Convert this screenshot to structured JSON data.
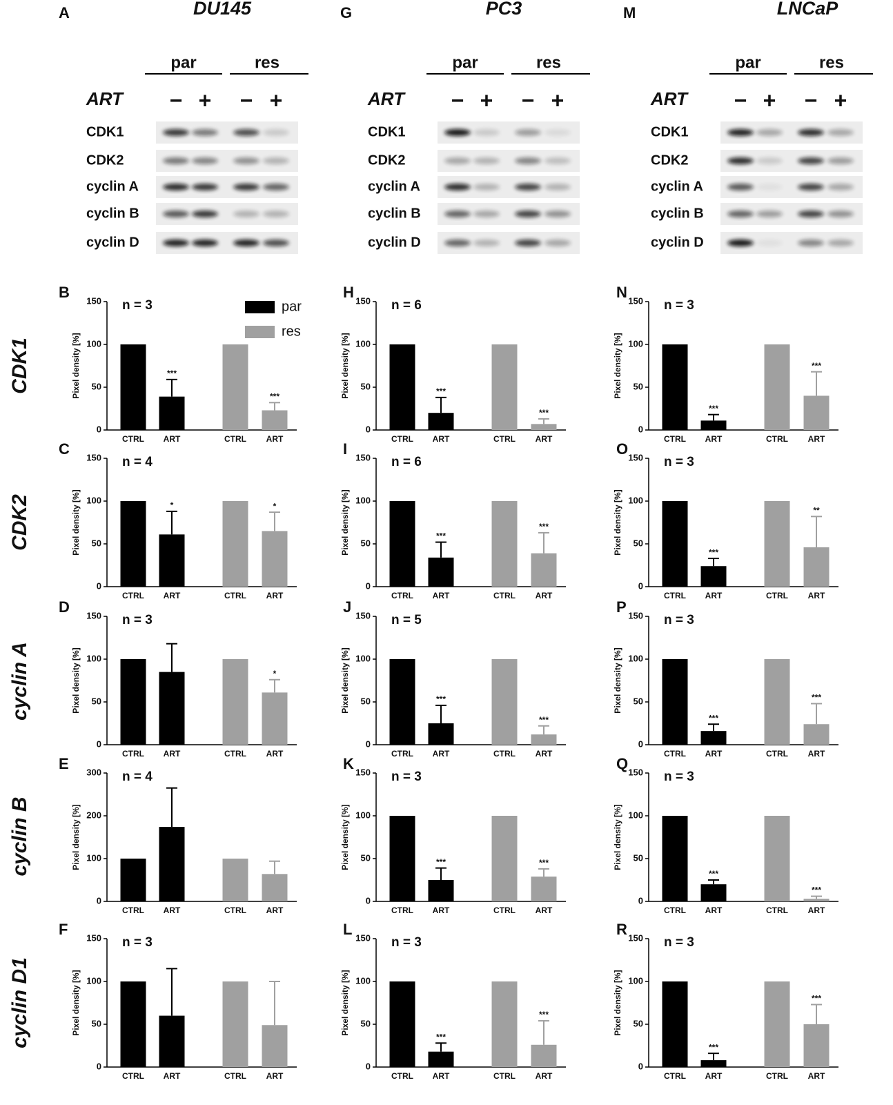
{
  "row_labels": [
    "CDK1",
    "CDK2",
    "cyclin A",
    "cyclin B",
    "cyclin D1"
  ],
  "blots": [
    {
      "panel": "A",
      "title": "DU145",
      "groups": [
        "par",
        "res"
      ],
      "treatment": "ART",
      "signs": [
        "−",
        "+",
        "−",
        "+"
      ],
      "proteins": [
        "CDK1",
        "CDK2",
        "cyclin A",
        "cyclin B",
        "cyclin D"
      ]
    },
    {
      "panel": "G",
      "title": "PC3",
      "groups": [
        "par",
        "res"
      ],
      "treatment": "ART",
      "signs": [
        "−",
        "+",
        "−",
        "+"
      ],
      "proteins": [
        "CDK1",
        "CDK2",
        "cyclin A",
        "cyclin B",
        "cyclin D"
      ]
    },
    {
      "panel": "M",
      "title": "LNCaP",
      "groups": [
        "par",
        "res"
      ],
      "treatment": "ART",
      "signs": [
        "−",
        "+",
        "−",
        "+"
      ],
      "proteins": [
        "CDK1",
        "CDK2",
        "cyclin A",
        "cyclin B",
        "cyclin D"
      ]
    }
  ],
  "chart_data": [
    {
      "type": "bar",
      "panel": "B",
      "n_label": "n = 3",
      "ylabel": "Pixel density [%]",
      "categories": [
        "CTRL",
        "ART",
        "CTRL",
        "ART"
      ],
      "ylim": [
        0,
        150
      ],
      "yticks": [
        0,
        50,
        100,
        150
      ],
      "series": [
        {
          "name": "par",
          "color": "#000000",
          "values": [
            100,
            39,
            null,
            null
          ],
          "errors": [
            null,
            20,
            null,
            null
          ],
          "annotations": [
            null,
            "***",
            null,
            null
          ]
        },
        {
          "name": "res",
          "color": "#a0a0a0",
          "values": [
            null,
            null,
            100,
            23
          ],
          "errors": [
            null,
            null,
            null,
            9
          ],
          "annotations": [
            null,
            null,
            null,
            "***"
          ]
        }
      ]
    },
    {
      "type": "bar",
      "panel": "C",
      "n_label": "n = 4",
      "ylabel": "Pixel density [%]",
      "categories": [
        "CTRL",
        "ART",
        "CTRL",
        "ART"
      ],
      "ylim": [
        0,
        150
      ],
      "yticks": [
        0,
        50,
        100,
        150
      ],
      "series": [
        {
          "color": "#000000",
          "values": [
            100,
            61,
            null,
            null
          ],
          "errors": [
            null,
            27,
            null,
            null
          ],
          "annotations": [
            null,
            "*",
            null,
            null
          ]
        },
        {
          "color": "#a0a0a0",
          "values": [
            null,
            null,
            100,
            65
          ],
          "errors": [
            null,
            null,
            null,
            22
          ],
          "annotations": [
            null,
            null,
            null,
            "*"
          ]
        }
      ]
    },
    {
      "type": "bar",
      "panel": "D",
      "n_label": "n = 3",
      "ylabel": "Pixel density [%]",
      "categories": [
        "CTRL",
        "ART",
        "CTRL",
        "ART"
      ],
      "ylim": [
        0,
        150
      ],
      "yticks": [
        0,
        50,
        100,
        150
      ],
      "series": [
        {
          "color": "#000000",
          "values": [
            100,
            85,
            null,
            null
          ],
          "errors": [
            null,
            33,
            null,
            null
          ],
          "annotations": [
            null,
            null,
            null,
            null
          ]
        },
        {
          "color": "#a0a0a0",
          "values": [
            null,
            null,
            100,
            61
          ],
          "errors": [
            null,
            null,
            null,
            15
          ],
          "annotations": [
            null,
            null,
            null,
            "*"
          ]
        }
      ]
    },
    {
      "type": "bar",
      "panel": "E",
      "n_label": "n = 4",
      "ylabel": "Pixel density [%]",
      "categories": [
        "CTRL",
        "ART",
        "CTRL",
        "ART"
      ],
      "ylim": [
        0,
        300
      ],
      "yticks": [
        0,
        100,
        200,
        300
      ],
      "series": [
        {
          "color": "#000000",
          "values": [
            100,
            174,
            null,
            null
          ],
          "errors": [
            null,
            91,
            null,
            null
          ],
          "annotations": [
            null,
            null,
            null,
            null
          ]
        },
        {
          "color": "#a0a0a0",
          "values": [
            null,
            null,
            100,
            64
          ],
          "errors": [
            null,
            null,
            null,
            30
          ],
          "annotations": [
            null,
            null,
            null,
            null
          ]
        }
      ]
    },
    {
      "type": "bar",
      "panel": "F",
      "n_label": "n = 3",
      "ylabel": "Pixel density [%]",
      "categories": [
        "CTRL",
        "ART",
        "CTRL",
        "ART"
      ],
      "ylim": [
        0,
        150
      ],
      "yticks": [
        0,
        50,
        100,
        150
      ],
      "series": [
        {
          "color": "#000000",
          "values": [
            100,
            60,
            null,
            null
          ],
          "errors": [
            null,
            55,
            null,
            null
          ],
          "annotations": [
            null,
            null,
            null,
            null
          ]
        },
        {
          "color": "#a0a0a0",
          "values": [
            null,
            null,
            100,
            49
          ],
          "errors": [
            null,
            null,
            null,
            51
          ],
          "annotations": [
            null,
            null,
            null,
            null
          ]
        }
      ]
    },
    {
      "type": "bar",
      "panel": "H",
      "n_label": "n = 6",
      "ylabel": "Pixel density [%]",
      "categories": [
        "CTRL",
        "ART",
        "CTRL",
        "ART"
      ],
      "ylim": [
        0,
        150
      ],
      "yticks": [
        0,
        50,
        100,
        150
      ],
      "series": [
        {
          "color": "#000000",
          "values": [
            100,
            20,
            null,
            null
          ],
          "errors": [
            null,
            18,
            null,
            null
          ],
          "annotations": [
            null,
            "***",
            null,
            null
          ]
        },
        {
          "color": "#a0a0a0",
          "values": [
            null,
            null,
            100,
            7
          ],
          "errors": [
            null,
            null,
            null,
            6
          ],
          "annotations": [
            null,
            null,
            null,
            "***"
          ]
        }
      ]
    },
    {
      "type": "bar",
      "panel": "I",
      "n_label": "n = 6",
      "ylabel": "Pixel density [%]",
      "categories": [
        "CTRL",
        "ART",
        "CTRL",
        "ART"
      ],
      "ylim": [
        0,
        150
      ],
      "yticks": [
        0,
        50,
        100,
        150
      ],
      "series": [
        {
          "color": "#000000",
          "values": [
            100,
            34,
            null,
            null
          ],
          "errors": [
            null,
            18,
            null,
            null
          ],
          "annotations": [
            null,
            "***",
            null,
            null
          ]
        },
        {
          "color": "#a0a0a0",
          "values": [
            null,
            null,
            100,
            39
          ],
          "errors": [
            null,
            null,
            null,
            24
          ],
          "annotations": [
            null,
            null,
            null,
            "***"
          ]
        }
      ]
    },
    {
      "type": "bar",
      "panel": "J",
      "n_label": "n = 5",
      "ylabel": "Pixel density [%]",
      "categories": [
        "CTRL",
        "ART",
        "CTRL",
        "ART"
      ],
      "ylim": [
        0,
        150
      ],
      "yticks": [
        0,
        50,
        100,
        150
      ],
      "series": [
        {
          "color": "#000000",
          "values": [
            100,
            25,
            null,
            null
          ],
          "errors": [
            null,
            21,
            null,
            null
          ],
          "annotations": [
            null,
            "***",
            null,
            null
          ]
        },
        {
          "color": "#a0a0a0",
          "values": [
            null,
            null,
            100,
            12
          ],
          "errors": [
            null,
            null,
            null,
            10
          ],
          "annotations": [
            null,
            null,
            null,
            "***"
          ]
        }
      ]
    },
    {
      "type": "bar",
      "panel": "K",
      "n_label": "n = 3",
      "ylabel": "Pixel density [%]",
      "categories": [
        "CTRL",
        "ART",
        "CTRL",
        "ART"
      ],
      "ylim": [
        0,
        150
      ],
      "yticks": [
        0,
        50,
        100,
        150
      ],
      "series": [
        {
          "color": "#000000",
          "values": [
            100,
            25,
            null,
            null
          ],
          "errors": [
            null,
            14,
            null,
            null
          ],
          "annotations": [
            null,
            "***",
            null,
            null
          ]
        },
        {
          "color": "#a0a0a0",
          "values": [
            null,
            null,
            100,
            29
          ],
          "errors": [
            null,
            null,
            null,
            9
          ],
          "annotations": [
            null,
            null,
            null,
            "***"
          ]
        }
      ]
    },
    {
      "type": "bar",
      "panel": "L",
      "n_label": "n = 3",
      "ylabel": "Pixel density [%]",
      "categories": [
        "CTRL",
        "ART",
        "CTRL",
        "ART"
      ],
      "ylim": [
        0,
        150
      ],
      "yticks": [
        0,
        50,
        100,
        150
      ],
      "series": [
        {
          "color": "#000000",
          "values": [
            100,
            18,
            null,
            null
          ],
          "errors": [
            null,
            10,
            null,
            null
          ],
          "annotations": [
            null,
            "***",
            null,
            null
          ]
        },
        {
          "color": "#a0a0a0",
          "values": [
            null,
            null,
            100,
            26
          ],
          "errors": [
            null,
            null,
            null,
            28
          ],
          "annotations": [
            null,
            null,
            null,
            "***"
          ]
        }
      ]
    },
    {
      "type": "bar",
      "panel": "N",
      "n_label": "n = 3",
      "ylabel": "Pixel density [%]",
      "categories": [
        "CTRL",
        "ART",
        "CTRL",
        "ART"
      ],
      "ylim": [
        0,
        150
      ],
      "yticks": [
        0,
        50,
        100,
        150
      ],
      "series": [
        {
          "color": "#000000",
          "values": [
            100,
            11,
            null,
            null
          ],
          "errors": [
            null,
            7,
            null,
            null
          ],
          "annotations": [
            null,
            "***",
            null,
            null
          ]
        },
        {
          "color": "#a0a0a0",
          "values": [
            null,
            null,
            100,
            40
          ],
          "errors": [
            null,
            null,
            null,
            28
          ],
          "annotations": [
            null,
            null,
            null,
            "***"
          ]
        }
      ]
    },
    {
      "type": "bar",
      "panel": "O",
      "n_label": "n = 3",
      "ylabel": "Pixel density [%]",
      "categories": [
        "CTRL",
        "ART",
        "CTRL",
        "ART"
      ],
      "ylim": [
        0,
        150
      ],
      "yticks": [
        0,
        50,
        100,
        150
      ],
      "series": [
        {
          "color": "#000000",
          "values": [
            100,
            24,
            null,
            null
          ],
          "errors": [
            null,
            9,
            null,
            null
          ],
          "annotations": [
            null,
            "***",
            null,
            null
          ]
        },
        {
          "color": "#a0a0a0",
          "values": [
            null,
            null,
            100,
            46
          ],
          "errors": [
            null,
            null,
            null,
            36
          ],
          "annotations": [
            null,
            null,
            null,
            "**"
          ]
        }
      ]
    },
    {
      "type": "bar",
      "panel": "P",
      "n_label": "n = 3",
      "ylabel": "Pixel density [%]",
      "categories": [
        "CTRL",
        "ART",
        "CTRL",
        "ART"
      ],
      "ylim": [
        0,
        150
      ],
      "yticks": [
        0,
        50,
        100,
        150
      ],
      "series": [
        {
          "color": "#000000",
          "values": [
            100,
            16,
            null,
            null
          ],
          "errors": [
            null,
            8,
            null,
            null
          ],
          "annotations": [
            null,
            "***",
            null,
            null
          ]
        },
        {
          "color": "#a0a0a0",
          "values": [
            null,
            null,
            100,
            24
          ],
          "errors": [
            null,
            null,
            null,
            24
          ],
          "annotations": [
            null,
            null,
            null,
            "***"
          ]
        }
      ]
    },
    {
      "type": "bar",
      "panel": "Q",
      "n_label": "n = 3",
      "ylabel": "Pixel density [%]",
      "categories": [
        "CTRL",
        "ART",
        "CTRL",
        "ART"
      ],
      "ylim": [
        0,
        150
      ],
      "yticks": [
        0,
        50,
        100,
        150
      ],
      "series": [
        {
          "color": "#000000",
          "values": [
            100,
            20,
            null,
            null
          ],
          "errors": [
            null,
            5,
            null,
            null
          ],
          "annotations": [
            null,
            "***",
            null,
            null
          ]
        },
        {
          "color": "#a0a0a0",
          "values": [
            null,
            null,
            100,
            3
          ],
          "errors": [
            null,
            null,
            null,
            3
          ],
          "annotations": [
            null,
            null,
            null,
            "***"
          ]
        }
      ]
    },
    {
      "type": "bar",
      "panel": "R",
      "n_label": "n = 3",
      "ylabel": "Pixel density [%]",
      "categories": [
        "CTRL",
        "ART",
        "CTRL",
        "ART"
      ],
      "ylim": [
        0,
        150
      ],
      "yticks": [
        0,
        50,
        100,
        150
      ],
      "series": [
        {
          "color": "#000000",
          "values": [
            100,
            8,
            null,
            null
          ],
          "errors": [
            null,
            8,
            null,
            null
          ],
          "annotations": [
            null,
            "***",
            null,
            null
          ]
        },
        {
          "color": "#a0a0a0",
          "values": [
            null,
            null,
            100,
            50
          ],
          "errors": [
            null,
            null,
            null,
            23
          ],
          "annotations": [
            null,
            null,
            null,
            "***"
          ]
        }
      ]
    }
  ]
}
